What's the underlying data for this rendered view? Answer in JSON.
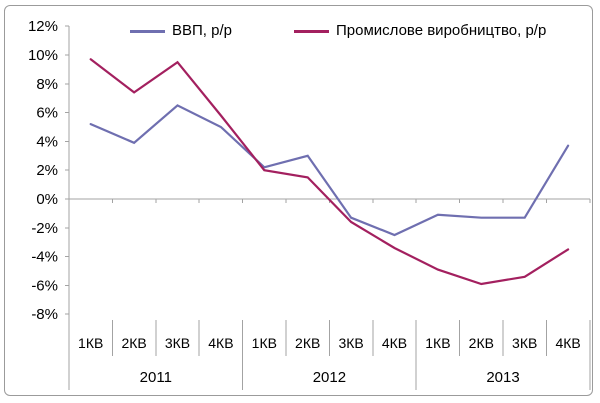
{
  "chart_data": {
    "type": "line",
    "title": "",
    "legend_position": "top-inside",
    "grid": "zero-line-only",
    "ylim": [
      -8,
      12
    ],
    "ytick_step": 2,
    "y_tick_labels": [
      "12%",
      "10%",
      "8%",
      "6%",
      "4%",
      "2%",
      "0%",
      "-2%",
      "-4%",
      "-6%",
      "-8%"
    ],
    "x_quarter_labels": [
      "1КВ",
      "2КВ",
      "3КВ",
      "4КВ",
      "1КВ",
      "2КВ",
      "3КВ",
      "4КВ",
      "1КВ",
      "2КВ",
      "3КВ",
      "4КВ"
    ],
    "x_year_labels": [
      "2011",
      "2012",
      "2013"
    ],
    "series": [
      {
        "name": "ВВП, р/р",
        "color": "#6F6FB0",
        "values": [
          5.2,
          3.9,
          6.5,
          5.0,
          2.2,
          3.0,
          -1.3,
          -2.5,
          -1.1,
          -1.3,
          -1.3,
          3.7
        ]
      },
      {
        "name": "Промислове виробництво, р/р",
        "color": "#A3205F",
        "values": [
          9.7,
          7.4,
          9.5,
          5.8,
          2.0,
          1.5,
          -1.6,
          -3.4,
          -4.9,
          -5.9,
          -5.4,
          -3.5
        ]
      }
    ]
  },
  "colors": {
    "axis": "#A3A3A3",
    "text": "#000000",
    "background": "#FFFFFF",
    "frame_border": "#9B9B9B"
  }
}
